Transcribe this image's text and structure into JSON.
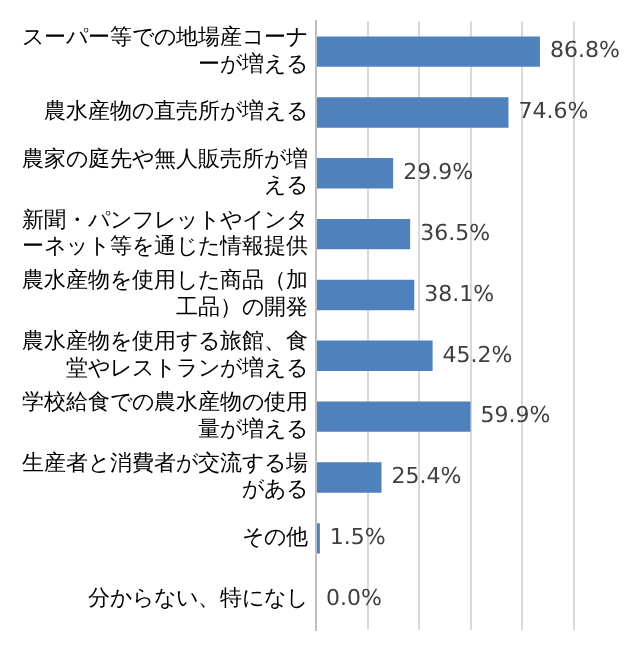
{
  "chart_data": {
    "type": "bar",
    "orientation": "horizontal",
    "categories": [
      "スーパー等での地場産コーナーが増える",
      "農水産物の直売所が増える",
      "農家の庭先や無人販売所が増える",
      "新聞・パンフレットやインターネット等を通じた情報提供",
      "農水産物を使用した商品（加工品）の開発",
      "農水産物を使用する旅館、食堂やレストランが増える",
      "学校給食での農水産物の使用量が増える",
      "生産者と消費者が交流する場がある",
      "その他",
      "分からない、特になし"
    ],
    "values": [
      86.8,
      74.6,
      29.9,
      36.5,
      38.1,
      45.2,
      59.9,
      25.4,
      1.5,
      0.0
    ],
    "value_labels": [
      "86.8%",
      "74.6%",
      "29.9%",
      "36.5%",
      "38.1%",
      "45.2%",
      "59.9%",
      "25.4%",
      "1.5%",
      "0.0%"
    ],
    "color": "#4f81bd",
    "xlim": [
      0,
      100
    ],
    "xticks": [
      0,
      20,
      40,
      60,
      80,
      100
    ],
    "grid": "x",
    "tick_labels": "y",
    "legend": false
  }
}
